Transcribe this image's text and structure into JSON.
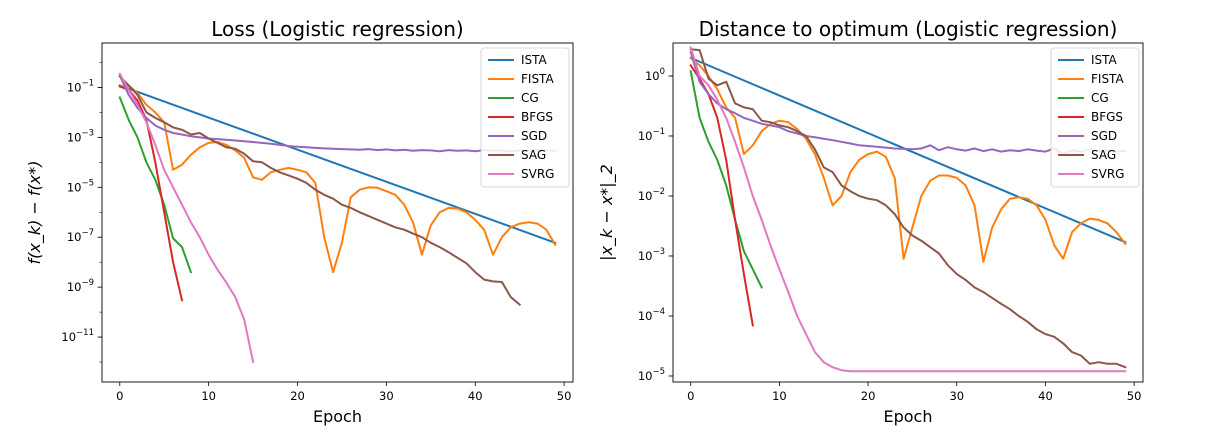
{
  "chart_data": [
    {
      "type": "line",
      "title": "Loss (Logistic regression)",
      "xlabel": "Epoch",
      "ylabel": "f(x_k) − f(x*)",
      "yscale": "log",
      "xlim": [
        -2,
        51
      ],
      "ylim_exp": [
        -12.8,
        0.78
      ],
      "xticks": [
        0,
        10,
        20,
        30,
        40,
        50
      ],
      "yticks": [
        {
          "exp": -1,
          "label": "10",
          "sup": "−1"
        },
        {
          "exp": -3,
          "label": "10",
          "sup": "−3"
        },
        {
          "exp": -5,
          "label": "10",
          "sup": "−5"
        },
        {
          "exp": -7,
          "label": "10",
          "sup": "−7"
        },
        {
          "exp": -9,
          "label": "10",
          "sup": "−9"
        },
        {
          "exp": -11,
          "label": "10",
          "sup": "−11"
        }
      ],
      "legend_position": "top-right",
      "series": [
        {
          "name": "ISTA",
          "color": "#1f77b4",
          "x": [
            0,
            49
          ],
          "y": [
            0.12,
            6e-08
          ]
        },
        {
          "name": "FISTA",
          "color": "#ff7f0e",
          "x": [
            0,
            1,
            2,
            3,
            4,
            5,
            6,
            7,
            8,
            9,
            10,
            11,
            12,
            13,
            14,
            15,
            16,
            17,
            18,
            19,
            20,
            21,
            22,
            23,
            24,
            25,
            26,
            27,
            28,
            29,
            30,
            31,
            32,
            33,
            34,
            35,
            36,
            37,
            38,
            39,
            40,
            41,
            42,
            43,
            44,
            45,
            46,
            47,
            48,
            49
          ],
          "y": [
            0.11,
            0.12,
            0.06,
            0.02,
            0.01,
            0.004,
            5e-05,
            8e-05,
            0.0002,
            0.0004,
            0.0006,
            0.00065,
            0.0005,
            0.0003,
            0.00015,
            2.5e-05,
            2e-05,
            4e-05,
            5e-05,
            6e-05,
            5e-05,
            4e-05,
            1.5e-05,
            1e-07,
            4e-09,
            6e-08,
            4e-06,
            8e-06,
            1e-05,
            9.5e-06,
            7e-06,
            5e-06,
            2e-06,
            4e-07,
            2e-08,
            3e-07,
            1e-06,
            1.5e-06,
            1.4e-06,
            1e-06,
            5e-07,
            2e-07,
            2e-08,
            1e-07,
            2.5e-07,
            3.5e-07,
            4e-07,
            3.5e-07,
            2e-07,
            5e-08
          ]
        },
        {
          "name": "CG",
          "color": "#2ca02c",
          "x": [
            0,
            1,
            2,
            3,
            4,
            5,
            6,
            7,
            8
          ],
          "y": [
            0.04,
            0.005,
            0.001,
            0.0001,
            2e-05,
            2e-06,
            9e-08,
            4e-08,
            4e-09
          ]
        },
        {
          "name": "BFGS",
          "color": "#d62728",
          "x": [
            0,
            1,
            2,
            3,
            4,
            5,
            6,
            7
          ],
          "y": [
            0.11,
            0.08,
            0.03,
            0.005,
            0.0001,
            1e-06,
            1e-08,
            3e-10
          ]
        },
        {
          "name": "SGD",
          "color": "#9467bd",
          "x": [
            0,
            1,
            2,
            3,
            4,
            5,
            6,
            7,
            8,
            9,
            10,
            11,
            12,
            13,
            14,
            15,
            16,
            17,
            18,
            19,
            20,
            21,
            22,
            23,
            24,
            25,
            26,
            27,
            28,
            29,
            30,
            31,
            32,
            33,
            34,
            35,
            36,
            37,
            38,
            39,
            40,
            41,
            42,
            43,
            44,
            45,
            46,
            47,
            48,
            49
          ],
          "y": [
            0.3,
            0.05,
            0.015,
            0.006,
            0.003,
            0.002,
            0.0015,
            0.0013,
            0.0011,
            0.001,
            0.0009,
            0.00085,
            0.0008,
            0.00075,
            0.0007,
            0.00065,
            0.0006,
            0.00055,
            0.0005,
            0.00045,
            0.00042,
            0.0004,
            0.00038,
            0.00036,
            0.00035,
            0.00034,
            0.00033,
            0.00032,
            0.00034,
            0.00031,
            0.00033,
            0.0003,
            0.00032,
            0.00029,
            0.00031,
            0.0003,
            0.00028,
            0.00031,
            0.00029,
            0.0003,
            0.00028,
            0.00031,
            0.00029,
            0.0003,
            0.00028,
            0.0003,
            0.00029,
            0.00031,
            0.0003,
            0.00029
          ]
        },
        {
          "name": "SAG",
          "color": "#8c564b",
          "x": [
            0,
            1,
            2,
            3,
            4,
            5,
            6,
            7,
            8,
            9,
            10,
            11,
            12,
            13,
            14,
            15,
            16,
            17,
            18,
            19,
            20,
            21,
            22,
            23,
            24,
            25,
            26,
            27,
            28,
            29,
            30,
            31,
            32,
            33,
            34,
            35,
            36,
            37,
            38,
            39,
            40,
            41,
            42,
            43,
            44,
            45
          ],
          "y": [
            0.28,
            0.12,
            0.05,
            0.01,
            0.006,
            0.004,
            0.0025,
            0.002,
            0.0013,
            0.0015,
            0.0009,
            0.0006,
            0.0004,
            0.00035,
            0.00022,
            0.00011,
            0.0001,
            6e-05,
            4e-05,
            3e-05,
            2.2e-05,
            1.5e-05,
            8e-06,
            5e-06,
            3.5e-06,
            2e-06,
            1.5e-06,
            1e-06,
            7e-07,
            5e-07,
            3.5e-07,
            2.5e-07,
            2e-07,
            1.4e-07,
            1e-07,
            6e-08,
            4e-08,
            2.5e-08,
            1.5e-08,
            9e-09,
            4e-09,
            2e-09,
            1.7e-09,
            1.6e-09,
            4e-10,
            2e-10
          ]
        },
        {
          "name": "SVRG",
          "color": "#e377c2",
          "x": [
            0,
            1,
            2,
            3,
            4,
            5,
            6,
            7,
            8,
            9,
            10,
            11,
            12,
            13,
            14,
            15
          ],
          "y": [
            0.35,
            0.08,
            0.02,
            0.004,
            0.0005,
            5e-05,
            1e-05,
            2e-06,
            4e-07,
            1e-07,
            2e-08,
            5e-09,
            1.5e-09,
            4e-10,
            5e-11,
            1e-12
          ]
        }
      ]
    },
    {
      "type": "line",
      "title": "Distance to optimum (Logistic regression)",
      "xlabel": "Epoch",
      "ylabel": "|x_k − x*|_2",
      "yscale": "log",
      "xlim": [
        -2,
        51
      ],
      "ylim_exp": [
        -5.1,
        0.55
      ],
      "xticks": [
        0,
        10,
        20,
        30,
        40,
        50
      ],
      "yticks": [
        {
          "exp": 0,
          "label": "10",
          "sup": "0"
        },
        {
          "exp": -1,
          "label": "10",
          "sup": "−1"
        },
        {
          "exp": -2,
          "label": "10",
          "sup": "−2"
        },
        {
          "exp": -3,
          "label": "10",
          "sup": "−3"
        },
        {
          "exp": -4,
          "label": "10",
          "sup": "−4"
        },
        {
          "exp": -5,
          "label": "10",
          "sup": "−5"
        }
      ],
      "legend_position": "top-right",
      "series": [
        {
          "name": "ISTA",
          "color": "#1f77b4",
          "x": [
            0,
            49
          ],
          "y": [
            2.0,
            0.0017
          ]
        },
        {
          "name": "FISTA",
          "color": "#ff7f0e",
          "x": [
            0,
            1,
            2,
            3,
            4,
            5,
            6,
            7,
            8,
            9,
            10,
            11,
            12,
            13,
            14,
            15,
            16,
            17,
            18,
            19,
            20,
            21,
            22,
            23,
            24,
            25,
            26,
            27,
            28,
            29,
            30,
            31,
            32,
            33,
            34,
            35,
            36,
            37,
            38,
            39,
            40,
            41,
            42,
            43,
            44,
            45,
            46,
            47,
            48,
            49
          ],
          "y": [
            2.0,
            1.5,
            1.0,
            0.6,
            0.3,
            0.2,
            0.05,
            0.07,
            0.12,
            0.16,
            0.18,
            0.17,
            0.13,
            0.09,
            0.05,
            0.02,
            0.007,
            0.01,
            0.025,
            0.04,
            0.05,
            0.055,
            0.045,
            0.02,
            0.0009,
            0.003,
            0.01,
            0.018,
            0.022,
            0.022,
            0.02,
            0.015,
            0.007,
            0.0008,
            0.003,
            0.006,
            0.009,
            0.0095,
            0.009,
            0.007,
            0.004,
            0.0015,
            0.0009,
            0.0025,
            0.0035,
            0.0042,
            0.004,
            0.0035,
            0.0025,
            0.0016
          ]
        },
        {
          "name": "CG",
          "color": "#2ca02c",
          "x": [
            0,
            1,
            2,
            3,
            4,
            5,
            6,
            7,
            8
          ],
          "y": [
            1.2,
            0.2,
            0.08,
            0.04,
            0.015,
            0.004,
            0.0012,
            0.0006,
            0.0003
          ]
        },
        {
          "name": "BFGS",
          "color": "#d62728",
          "x": [
            0,
            1,
            2,
            3,
            4,
            5,
            6,
            7
          ],
          "y": [
            1.5,
            0.9,
            0.5,
            0.2,
            0.04,
            0.004,
            0.0005,
            7e-05
          ]
        },
        {
          "name": "SGD",
          "color": "#9467bd",
          "x": [
            0,
            1,
            2,
            3,
            4,
            5,
            6,
            7,
            8,
            9,
            10,
            11,
            12,
            13,
            14,
            15,
            16,
            17,
            18,
            19,
            20,
            21,
            22,
            23,
            24,
            25,
            26,
            27,
            28,
            29,
            30,
            31,
            32,
            33,
            34,
            35,
            36,
            37,
            38,
            39,
            40,
            41,
            42,
            43,
            44,
            45,
            46,
            47,
            48,
            49
          ],
          "y": [
            2.5,
            0.8,
            0.5,
            0.35,
            0.28,
            0.24,
            0.2,
            0.18,
            0.16,
            0.15,
            0.14,
            0.12,
            0.11,
            0.1,
            0.095,
            0.09,
            0.085,
            0.08,
            0.075,
            0.07,
            0.068,
            0.066,
            0.064,
            0.062,
            0.061,
            0.06,
            0.062,
            0.07,
            0.058,
            0.065,
            0.06,
            0.057,
            0.062,
            0.056,
            0.06,
            0.055,
            0.058,
            0.056,
            0.06,
            0.057,
            0.055,
            0.062,
            0.05,
            0.058,
            0.055,
            0.06,
            0.056,
            0.058,
            0.055,
            0.057
          ]
        },
        {
          "name": "SAG",
          "color": "#8c564b",
          "x": [
            0,
            1,
            2,
            3,
            4,
            5,
            6,
            7,
            8,
            9,
            10,
            11,
            12,
            13,
            14,
            15,
            16,
            17,
            18,
            19,
            20,
            21,
            22,
            23,
            24,
            25,
            26,
            27,
            28,
            29,
            30,
            31,
            32,
            33,
            34,
            35,
            36,
            37,
            38,
            39,
            40,
            41,
            42,
            43,
            44,
            45,
            46,
            47,
            48,
            49
          ],
          "y": [
            2.8,
            2.7,
            0.9,
            0.7,
            0.8,
            0.35,
            0.3,
            0.28,
            0.18,
            0.17,
            0.15,
            0.14,
            0.12,
            0.1,
            0.06,
            0.03,
            0.025,
            0.015,
            0.012,
            0.01,
            0.009,
            0.0085,
            0.007,
            0.005,
            0.003,
            0.0022,
            0.0018,
            0.0014,
            0.0011,
            0.0007,
            0.0005,
            0.0004,
            0.0003,
            0.00025,
            0.0002,
            0.00016,
            0.00013,
            0.0001,
            8e-05,
            6e-05,
            5e-05,
            4.5e-05,
            3.5e-05,
            2.5e-05,
            2.2e-05,
            1.6e-05,
            1.7e-05,
            1.6e-05,
            1.6e-05,
            1.4e-05
          ]
        },
        {
          "name": "SVRG",
          "color": "#e377c2",
          "x": [
            0,
            1,
            2,
            3,
            4,
            5,
            6,
            7,
            8,
            9,
            10,
            11,
            12,
            13,
            14,
            15,
            16,
            17,
            18,
            19,
            20,
            21,
            22,
            23,
            24,
            25,
            26,
            27,
            28,
            29,
            30,
            31,
            32,
            33,
            34,
            35,
            36,
            37,
            38,
            39,
            40,
            41,
            42,
            43,
            44,
            45,
            46,
            47,
            48,
            49
          ],
          "y": [
            3.0,
            1.0,
            0.7,
            0.4,
            0.2,
            0.08,
            0.03,
            0.01,
            0.004,
            0.0015,
            0.0006,
            0.00025,
            0.0001,
            5e-05,
            2.5e-05,
            1.7e-05,
            1.4e-05,
            1.25e-05,
            1.2e-05,
            1.2e-05,
            1.2e-05,
            1.2e-05,
            1.2e-05,
            1.2e-05,
            1.2e-05,
            1.2e-05,
            1.2e-05,
            1.2e-05,
            1.2e-05,
            1.2e-05,
            1.2e-05,
            1.2e-05,
            1.2e-05,
            1.2e-05,
            1.2e-05,
            1.2e-05,
            1.2e-05,
            1.2e-05,
            1.2e-05,
            1.2e-05,
            1.2e-05,
            1.2e-05,
            1.2e-05,
            1.2e-05,
            1.2e-05,
            1.2e-05,
            1.2e-05,
            1.2e-05,
            1.2e-05,
            1.2e-05
          ]
        }
      ]
    }
  ]
}
